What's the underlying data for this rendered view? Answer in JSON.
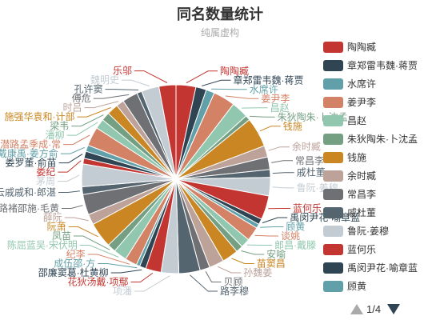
{
  "chart_data": {
    "type": "pie",
    "title": "同名数量统计",
    "subtitle": "纯属虚构",
    "slices": [
      {
        "name": "陶陶臧",
        "value": 28,
        "color": "#c23531"
      },
      {
        "name": "章郑雷韦魏·蒋贾",
        "value": 15,
        "color": "#2f4554"
      },
      {
        "name": "水席许",
        "value": 12,
        "color": "#61a0a8"
      },
      {
        "name": "姜尹李",
        "value": 31,
        "color": "#d48265"
      },
      {
        "name": "昌赵",
        "value": 24,
        "color": "#91c7ae"
      },
      {
        "name": "朱狄陶朱·卜沈孟",
        "value": 7,
        "color": "#749f83"
      },
      {
        "name": "钱施",
        "value": 42,
        "color": "#ca8622"
      },
      {
        "name": "余时臧",
        "value": 16,
        "color": "#bda29a"
      },
      {
        "name": "常昌李",
        "value": 18,
        "color": "#6e7074"
      },
      {
        "name": "戚杜董",
        "value": 11,
        "color": "#546570"
      },
      {
        "name": "鲁阮·姜穆",
        "value": 26,
        "color": "#c4ccd3"
      },
      {
        "name": "蓝何乐",
        "value": 34,
        "color": "#c23531"
      },
      {
        "name": "禹闵尹花·喻章蓝",
        "value": 8,
        "color": "#2f4554"
      },
      {
        "name": "顾黄",
        "value": 6,
        "color": "#61a0a8"
      },
      {
        "name": "谈姚",
        "value": 20,
        "color": "#d48265"
      },
      {
        "name": "郎昌·戴滕",
        "value": 13,
        "color": "#91c7ae"
      },
      {
        "name": "安喻",
        "value": 10,
        "color": "#749f83"
      },
      {
        "name": "苗窦昌",
        "value": 23,
        "color": "#ca8622"
      },
      {
        "name": "孙魏姜",
        "value": 21,
        "color": "#bda29a"
      },
      {
        "name": "贝顾",
        "value": 14,
        "color": "#6e7074"
      },
      {
        "name": "路李穆",
        "value": 30,
        "color": "#546570"
      },
      {
        "name": "项潘",
        "value": 25,
        "color": "#c4ccd3"
      },
      {
        "name": "花狄汤戴·项鄢",
        "value": 22,
        "color": "#c23531"
      },
      {
        "name": "邵廉窦葛·杜黄柳",
        "value": 9,
        "color": "#2f4554"
      },
      {
        "name": "成伍邵·方",
        "value": 5,
        "color": "#61a0a8"
      },
      {
        "name": "纪李",
        "value": 17,
        "color": "#d48265"
      },
      {
        "name": "陈屈蓝吴·宋伏明",
        "value": 19,
        "color": "#91c7ae"
      },
      {
        "name": "凤苗",
        "value": 12,
        "color": "#749f83"
      },
      {
        "name": "阮萧",
        "value": 36,
        "color": "#ca8622"
      },
      {
        "name": "薛阮",
        "value": 15,
        "color": "#bda29a"
      },
      {
        "name": "路褚邵施·毛黄",
        "value": 29,
        "color": "#6e7074"
      },
      {
        "name": "云戚戚和·郎湛",
        "value": 11,
        "color": "#546570"
      },
      {
        "name": "茅周",
        "value": 32,
        "color": "#c4ccd3"
      },
      {
        "name": "娄纪",
        "value": 8,
        "color": "#c23531"
      },
      {
        "name": "娄罗董·俞苗",
        "value": 10,
        "color": "#2f4554"
      },
      {
        "name": "戴康禹·姜方俞",
        "value": 9,
        "color": "#61a0a8"
      },
      {
        "name": "潜路孟季成·常",
        "value": 27,
        "color": "#d48265"
      },
      {
        "name": "潘柳",
        "value": 14,
        "color": "#91c7ae"
      },
      {
        "name": "梁韦",
        "value": 12,
        "color": "#749f83"
      },
      {
        "name": "施强华袁和·计部",
        "value": 16,
        "color": "#ca8622"
      },
      {
        "name": "时吕",
        "value": 11,
        "color": "#bda29a"
      },
      {
        "name": "傅危",
        "value": 22,
        "color": "#6e7074"
      },
      {
        "name": "孔许窦",
        "value": 7,
        "color": "#546570"
      },
      {
        "name": "魏明史",
        "value": 25,
        "color": "#c4ccd3"
      },
      {
        "name": "乐邬",
        "value": 24,
        "color": "#c23531"
      }
    ],
    "legend": {
      "placement": "right",
      "page": "1/4",
      "items": [
        "陶陶臧",
        "章郑雷韦魏·蒋贾",
        "水席许",
        "姜尹李",
        "昌赵",
        "朱狄陶朱·卜沈孟",
        "钱施",
        "余时臧",
        "常昌李",
        "戚杜董",
        "鲁阮·姜穆",
        "蓝何乐",
        "禹闵尹花·喻章蓝",
        "顾黄",
        "谈姚"
      ],
      "colors": [
        "#c23531",
        "#2f4554",
        "#61a0a8",
        "#d48265",
        "#91c7ae",
        "#749f83",
        "#ca8622",
        "#bda29a",
        "#6e7074",
        "#546570",
        "#c4ccd3",
        "#c23531",
        "#2f4554",
        "#61a0a8",
        "#d48265"
      ]
    }
  }
}
